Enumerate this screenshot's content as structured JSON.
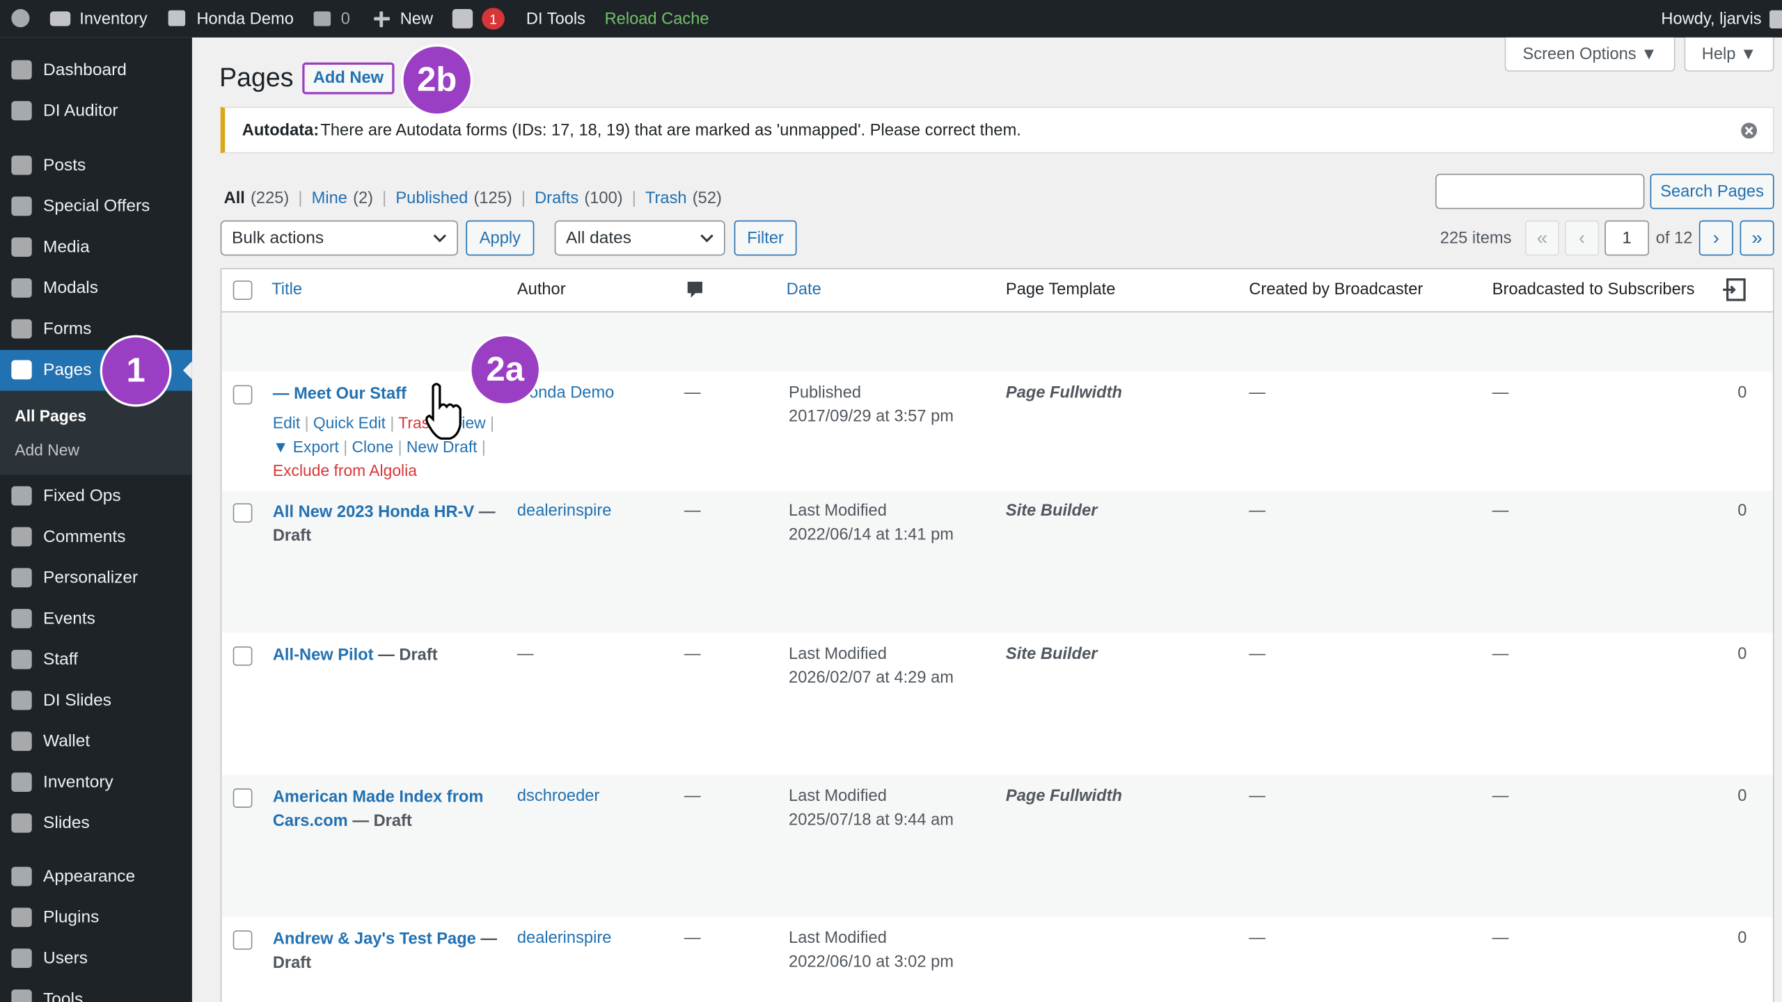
{
  "admin_bar": {
    "inventory": "Inventory",
    "site": "Honda Demo",
    "comments": "0",
    "new": "New",
    "yoast_badge": "1",
    "di_tools": "DI Tools",
    "reload_cache": "Reload Cache",
    "howdy": "Howdy, ljarvis"
  },
  "sidebar": {
    "menu": [
      "Dashboard",
      "DI Auditor",
      "Posts",
      "Special Offers",
      "Media",
      "Modals",
      "Forms",
      "Pages",
      "Fixed Ops",
      "Comments",
      "Personalizer",
      "Events",
      "Staff",
      "DI Slides",
      "Wallet",
      "Inventory",
      "Slides",
      "Appearance",
      "Plugins",
      "Users",
      "Tools"
    ],
    "submenu": [
      "All Pages",
      "Add New"
    ]
  },
  "header": {
    "title": "Pages",
    "add_new": "Add New",
    "screen_options": "Screen Options ▼",
    "help": "Help ▼"
  },
  "callouts": [
    "1",
    "2a",
    "2b"
  ],
  "notice": {
    "label": "Autodata:",
    "text": "There are Autodata forms (IDs: 17, 18, 19) that are marked as 'unmapped'. Please correct them."
  },
  "separator": "|",
  "filters": [
    {
      "label": "All",
      "count": "(225)"
    },
    {
      "label": "Mine",
      "count": "(2)"
    },
    {
      "label": "Published",
      "count": "(125)"
    },
    {
      "label": "Drafts",
      "count": "(100)"
    },
    {
      "label": "Trash",
      "count": "(52)"
    }
  ],
  "search_button": "Search Pages",
  "bulk_actions": "Bulk actions",
  "apply": "Apply",
  "dates": "All dates",
  "filter": "Filter",
  "pagination": {
    "items": "225 items",
    "first": "«",
    "prev": "‹",
    "page": "1",
    "of": "of 12",
    "next": "›",
    "last": "»"
  },
  "table": {
    "columns": [
      "Title",
      "Author",
      "Date",
      "Page Template",
      "Created by Broadcaster",
      "Broadcasted to Subscribers"
    ],
    "row_actions": [
      {
        "label": "Edit"
      },
      {
        "label": "Quick Edit"
      },
      {
        "label": "Trash",
        "color": "#d63638"
      },
      {
        "label": "View"
      },
      {
        "label": "▼ Export"
      },
      {
        "label": "Clone"
      },
      {
        "label": "New Draft"
      },
      {
        "label": "Exclude from Algolia",
        "color": "#d63638"
      }
    ],
    "rows": [
      {
        "title": "— Meet Our Staff",
        "author": "Honda Demo",
        "comments": "—",
        "date_status": "Published",
        "date": "2017/09/29 at 3:57 pm",
        "template": "Page Fullwidth",
        "created": "—",
        "broadcast": "—",
        "count": "0"
      },
      {
        "title": "All New 2023 Honda HR-V",
        "state": "— Draft",
        "author": "dealerinspire",
        "comments": "—",
        "date_status": "Last Modified",
        "date": "2022/06/14 at 1:41 pm",
        "template": "Site Builder",
        "created": "—",
        "broadcast": "—",
        "count": "0"
      },
      {
        "title": "All-New Pilot",
        "state": "— Draft",
        "author": "—",
        "comments": "—",
        "date_status": "Last Modified",
        "date": "2026/02/07 at 4:29 am",
        "template": "Site Builder",
        "created": "—",
        "broadcast": "—",
        "count": "0"
      },
      {
        "title": "American Made Index from Cars.com",
        "state": "— Draft",
        "author": "dschroeder",
        "comments": "—",
        "date_status": "Last Modified",
        "date": "2025/07/18 at 9:44 am",
        "template": "Page Fullwidth",
        "created": "—",
        "broadcast": "—",
        "count": "0"
      },
      {
        "title": "Andrew & Jay's Test Page",
        "state": "— Draft",
        "author": "dealerinspire",
        "comments": "—",
        "date_status": "Last Modified",
        "date": "2022/06/10 at 3:02 pm",
        "created": "—",
        "broadcast": "—",
        "count": "0"
      }
    ]
  }
}
